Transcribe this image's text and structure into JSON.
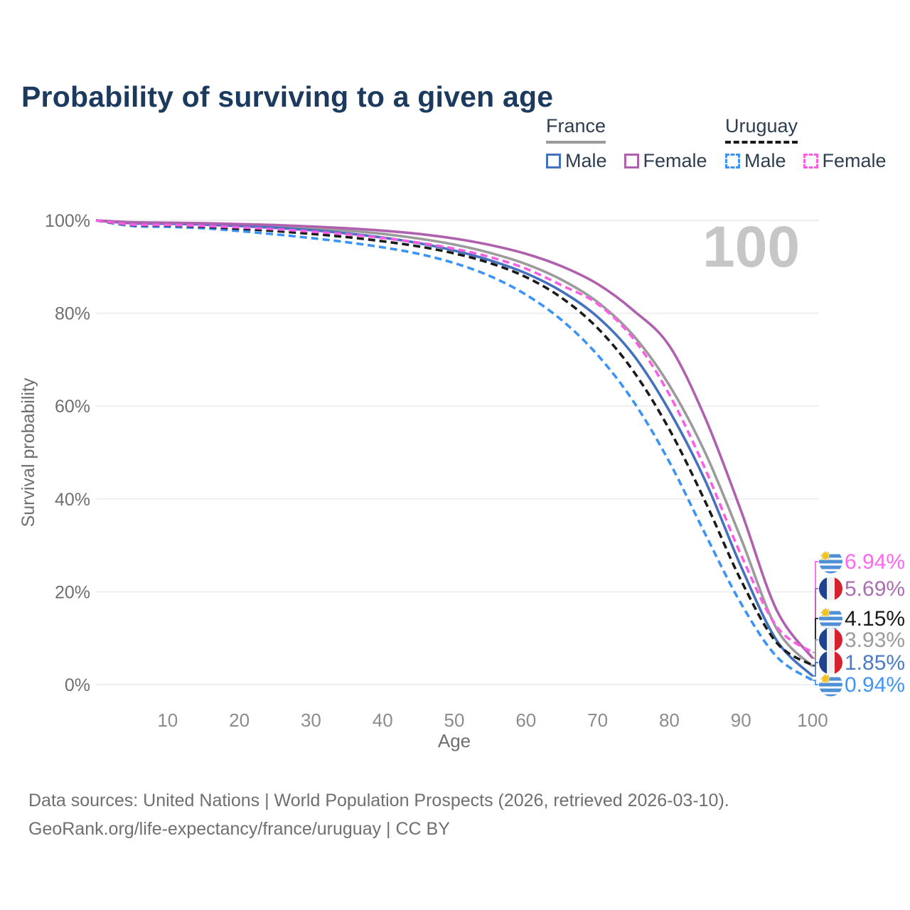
{
  "header": {
    "title": "Probability of surviving to a given age"
  },
  "legend": {
    "groups": [
      {
        "title": "France",
        "underline_style": "solid",
        "underline_color": "#9b9b9b",
        "items": [
          {
            "label": "Male",
            "color": "#4472bd",
            "dash": false
          },
          {
            "label": "Female",
            "color": "#b061ae",
            "dash": false
          }
        ]
      },
      {
        "title": "Uruguay",
        "underline_style": "dashed",
        "underline_color": "#1a1a1a",
        "items": [
          {
            "label": "Male",
            "color": "#3b93f7",
            "dash": true
          },
          {
            "label": "Female",
            "color": "#ff5ce6",
            "dash": true
          }
        ]
      }
    ]
  },
  "watermark": "100",
  "chart_data": {
    "type": "line",
    "title": "Probability of surviving to a given age",
    "xlabel": "Age",
    "ylabel": "Survival probability",
    "xlim": [
      0,
      100
    ],
    "ylim": [
      0,
      100
    ],
    "grid": "horizontal",
    "legend_position": "top-right",
    "x_ticks": [
      10,
      20,
      30,
      40,
      50,
      60,
      70,
      80,
      90,
      100
    ],
    "y_ticks": [
      {
        "value": 0,
        "label": "0%"
      },
      {
        "value": 20,
        "label": "20%"
      },
      {
        "value": 40,
        "label": "40%"
      },
      {
        "value": 60,
        "label": "60%"
      },
      {
        "value": 80,
        "label": "80%"
      },
      {
        "value": 100,
        "label": "100%"
      }
    ],
    "ages": [
      0,
      5,
      10,
      15,
      20,
      25,
      30,
      35,
      40,
      45,
      50,
      55,
      60,
      65,
      70,
      75,
      80,
      85,
      90,
      95,
      100
    ],
    "series": [
      {
        "id": "france-both",
        "country": "France",
        "sex": "Both sexes",
        "line": "solid",
        "color": "#9b9b9b",
        "label_color": "#9b9b9b",
        "flag": "uruguay-none",
        "flag_country": "france",
        "end_label": "3.93%",
        "values": [
          100,
          99.5,
          99.4,
          99.3,
          99.0,
          98.7,
          98.3,
          97.8,
          97.1,
          96.1,
          94.8,
          93.0,
          90.6,
          87.2,
          82.4,
          75.2,
          64.5,
          50.0,
          31.5,
          12.0,
          3.93
        ]
      },
      {
        "id": "france-male",
        "country": "France",
        "sex": "Male",
        "line": "solid",
        "color": "#4472bd",
        "label_color": "#4b7bc4",
        "flag_country": "france",
        "end_label": "1.85%",
        "values": [
          100,
          99.4,
          99.3,
          99.1,
          98.8,
          98.4,
          97.9,
          97.2,
          96.3,
          95.1,
          93.5,
          91.4,
          88.6,
          84.7,
          79.2,
          71.0,
          59.0,
          44.0,
          25.5,
          9.5,
          1.85
        ]
      },
      {
        "id": "france-female",
        "country": "France",
        "sex": "Female",
        "line": "solid",
        "color": "#b061ae",
        "label_color": "#a96fb0",
        "flag_country": "france",
        "end_label": "5.69%",
        "values": [
          100,
          99.6,
          99.5,
          99.4,
          99.2,
          99.0,
          98.7,
          98.3,
          97.8,
          97.1,
          96.1,
          94.7,
          92.8,
          90.1,
          86.3,
          80.6,
          73.0,
          57.5,
          37.5,
          16.0,
          5.69
        ]
      },
      {
        "id": "uruguay-male",
        "country": "Uruguay",
        "sex": "Male",
        "line": "dashed",
        "color": "#3b93f7",
        "label_color": "#3f95fa",
        "flag_country": "uruguay",
        "end_label": "0.94%",
        "values": [
          100,
          98.8,
          98.6,
          98.3,
          97.7,
          97.0,
          96.2,
          95.3,
          94.2,
          92.8,
          90.8,
          88.0,
          84.0,
          78.5,
          71.0,
          61.0,
          48.0,
          32.5,
          17.5,
          6.0,
          0.94
        ]
      },
      {
        "id": "uruguay-both",
        "country": "Uruguay",
        "sex": "Both sexes",
        "line": "dashed",
        "color": "#1a1a1a",
        "label_color": "#1a1a1a",
        "flag_country": "uruguay",
        "end_label": "4.15%",
        "values": [
          100,
          99.0,
          98.9,
          98.6,
          98.2,
          97.7,
          97.1,
          96.4,
          95.5,
          94.4,
          92.9,
          90.8,
          87.8,
          83.3,
          76.8,
          67.5,
          55.0,
          39.5,
          22.5,
          9.0,
          4.15
        ]
      },
      {
        "id": "uruguay-female",
        "country": "Uruguay",
        "sex": "Female",
        "line": "dashed",
        "color": "#ff5ce6",
        "label_color": "#ff66f0",
        "flag_country": "uruguay",
        "end_label": "6.94%",
        "values": [
          100,
          99.1,
          99.0,
          98.8,
          98.5,
          98.1,
          97.6,
          97.0,
          96.2,
          95.2,
          93.9,
          92.1,
          89.6,
          86.0,
          82.0,
          74.5,
          62.5,
          46.5,
          28.0,
          12.5,
          6.94
        ]
      }
    ]
  },
  "footer": {
    "line1": "Data sources: United Nations | World Population Prospects (2026, retrieved 2026-03-10).",
    "line2": "GeoRank.org/life-expectancy/france/uruguay | CC BY"
  }
}
